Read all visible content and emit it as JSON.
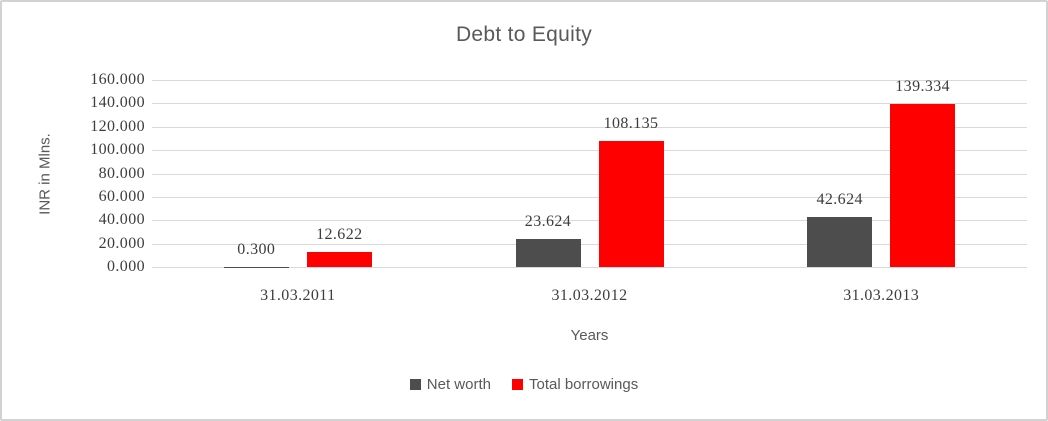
{
  "window": {
    "background_color": "#ffffff",
    "border_color": "#d2d2d2"
  },
  "chart_data": {
    "type": "bar",
    "title": "Debt to Equity",
    "xlabel": "Years",
    "ylabel": "INR in Mlns.",
    "categories": [
      "31.03.2011",
      "31.03.2012",
      "31.03.2013"
    ],
    "series": [
      {
        "name": "Net worth",
        "color": "#4d4d4d",
        "values": [
          0.3,
          23.624,
          42.624
        ],
        "labels": [
          "0.300",
          "23.624",
          "42.624"
        ]
      },
      {
        "name": "Total borrowings",
        "color": "#ff0000",
        "values": [
          12.622,
          108.135,
          139.334
        ],
        "labels": [
          "12.622",
          "108.135",
          "139.334"
        ]
      }
    ],
    "ylim": [
      0,
      160
    ],
    "ytick_step": 20,
    "ytick_labels": [
      "0.000",
      "20.000",
      "40.000",
      "60.000",
      "80.000",
      "100.000",
      "120.000",
      "140.000",
      "160.000"
    ],
    "grid": true,
    "legend_position": "bottom",
    "gridline_color": "#d9d9d9",
    "title_color": "#595959",
    "tick_label_color": "#3d3d3d"
  }
}
